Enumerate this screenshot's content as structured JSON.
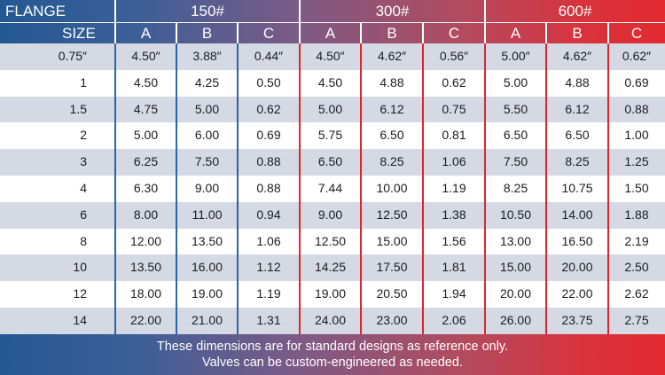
{
  "table": {
    "header": {
      "flange_label": "FLANGE",
      "size_label": "SIZE",
      "classes": [
        "150#",
        "300#",
        "600#"
      ],
      "columns": [
        "A",
        "B",
        "C"
      ]
    },
    "rows": [
      {
        "size": "0.75″",
        "values": [
          "4.50″",
          "3.88″",
          "0.44″",
          "4.50″",
          "4.62″",
          "0.56″",
          "5.00″",
          "4.62″",
          "0.62″"
        ]
      },
      {
        "size": "1",
        "values": [
          "4.50",
          "4.25",
          "0.50",
          "4.50",
          "4.88",
          "0.62",
          "5.00",
          "4.88",
          "0.69"
        ]
      },
      {
        "size": "1.5",
        "values": [
          "4.75",
          "5.00",
          "0.62",
          "5.00",
          "6.12",
          "0.75",
          "5.50",
          "6.12",
          "0.88"
        ]
      },
      {
        "size": "2",
        "values": [
          "5.00",
          "6.00",
          "0.69",
          "5.75",
          "6.50",
          "0.81",
          "6.50",
          "6.50",
          "1.00"
        ]
      },
      {
        "size": "3",
        "values": [
          "6.25",
          "7.50",
          "0.88",
          "6.50",
          "8.25",
          "1.06",
          "7.50",
          "8.25",
          "1.25"
        ]
      },
      {
        "size": "4",
        "values": [
          "6.30",
          "9.00",
          "0.88",
          "7.44",
          "10.00",
          "1.19",
          "8.25",
          "10.75",
          "1.50"
        ]
      },
      {
        "size": "6",
        "values": [
          "8.00",
          "11.00",
          "0.94",
          "9.00",
          "12.50",
          "1.38",
          "10.50",
          "14.00",
          "1.88"
        ]
      },
      {
        "size": "8",
        "values": [
          "12.00",
          "13.50",
          "1.06",
          "12.50",
          "15.00",
          "1.56",
          "13.00",
          "16.50",
          "2.19"
        ]
      },
      {
        "size": "10",
        "values": [
          "13.50",
          "16.00",
          "1.12",
          "14.25",
          "17.50",
          "1.81",
          "15.00",
          "20.00",
          "2.50"
        ]
      },
      {
        "size": "12",
        "values": [
          "18.00",
          "19.00",
          "1.19",
          "19.00",
          "20.50",
          "1.94",
          "20.00",
          "22.00",
          "2.62"
        ]
      },
      {
        "size": "14",
        "values": [
          "22.00",
          "21.00",
          "1.31",
          "24.00",
          "23.00",
          "2.06",
          "26.00",
          "23.75",
          "2.75"
        ]
      }
    ]
  },
  "footer": {
    "line1": "These dimensions are for standard designs as reference only.",
    "line2": "Valves can be custom-engineered as needed."
  },
  "colors": {
    "gradient_start": "#245892",
    "gradient_end": "#e32a30",
    "row_shade": "#d5d9e4",
    "blue_rule": "#2c64a8",
    "red_rule": "#d8282e"
  }
}
